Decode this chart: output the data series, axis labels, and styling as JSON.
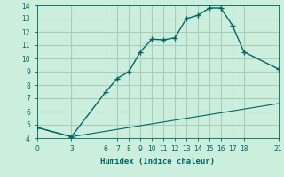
{
  "xlabel": "Humidex (Indice chaleur)",
  "bg_color": "#cceedd",
  "grid_color": "#aaccbb",
  "line_color": "#006666",
  "curve1_x": [
    0,
    3,
    6,
    7,
    8,
    9,
    10,
    11,
    12,
    13,
    14,
    15,
    16,
    17,
    18,
    21
  ],
  "curve1_y": [
    4.8,
    4.1,
    7.5,
    8.5,
    9.0,
    10.5,
    11.45,
    11.4,
    11.55,
    13.0,
    13.25,
    13.8,
    13.8,
    12.5,
    10.5,
    9.2
  ],
  "curve2_x": [
    0,
    3,
    21
  ],
  "curve2_y": [
    4.8,
    4.1,
    6.6
  ],
  "xlim": [
    0,
    21
  ],
  "ylim": [
    4,
    14
  ],
  "yticks": [
    4,
    5,
    6,
    7,
    8,
    9,
    10,
    11,
    12,
    13,
    14
  ],
  "xticks": [
    0,
    3,
    6,
    7,
    8,
    9,
    10,
    11,
    12,
    13,
    14,
    15,
    16,
    17,
    18,
    21
  ]
}
